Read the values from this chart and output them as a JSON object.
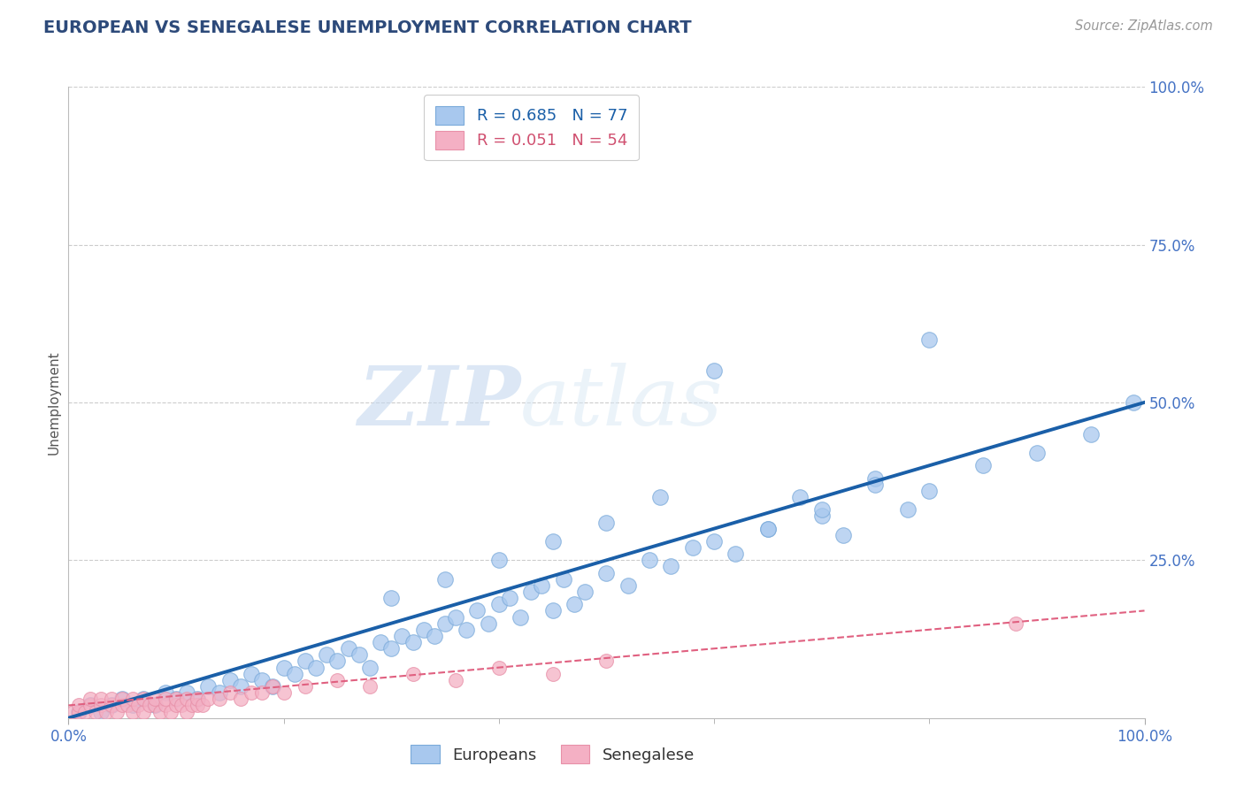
{
  "title": "EUROPEAN VS SENEGALESE UNEMPLOYMENT CORRELATION CHART",
  "source": "Source: ZipAtlas.com",
  "ylabel": "Unemployment",
  "title_color": "#2d4a7a",
  "source_color": "#999999",
  "background_color": "#ffffff",
  "xlim": [
    0,
    100
  ],
  "ylim": [
    0,
    100
  ],
  "blue_color": "#a8c8ee",
  "blue_edge": "#7aaada",
  "pink_color": "#f4b0c4",
  "pink_edge": "#e890a8",
  "trend_blue_color": "#1a5fa8",
  "trend_pink_color": "#e06080",
  "legend_line1": "R = 0.685   N = 77",
  "legend_line2": "R = 0.051   N = 54",
  "watermark_zip": "ZIP",
  "watermark_atlas": "atlas",
  "eu_x": [
    1,
    2,
    3,
    4,
    5,
    6,
    7,
    8,
    9,
    10,
    11,
    12,
    13,
    14,
    15,
    16,
    17,
    18,
    19,
    20,
    21,
    22,
    23,
    24,
    25,
    26,
    27,
    28,
    29,
    30,
    31,
    32,
    33,
    34,
    35,
    36,
    37,
    38,
    39,
    40,
    41,
    42,
    43,
    44,
    45,
    46,
    47,
    48,
    50,
    52,
    54,
    56,
    58,
    60,
    62,
    65,
    68,
    70,
    72,
    75,
    78,
    80,
    85,
    90,
    95,
    99,
    30,
    35,
    40,
    45,
    50,
    55,
    60,
    65,
    70,
    75,
    80
  ],
  "eu_y": [
    1,
    2,
    1,
    2,
    3,
    2,
    3,
    2,
    4,
    3,
    4,
    3,
    5,
    4,
    6,
    5,
    7,
    6,
    5,
    8,
    7,
    9,
    8,
    10,
    9,
    11,
    10,
    8,
    12,
    11,
    13,
    12,
    14,
    13,
    15,
    16,
    14,
    17,
    15,
    18,
    19,
    16,
    20,
    21,
    17,
    22,
    18,
    20,
    23,
    21,
    25,
    24,
    27,
    28,
    26,
    30,
    35,
    32,
    29,
    38,
    33,
    36,
    40,
    42,
    45,
    50,
    19,
    22,
    25,
    28,
    31,
    35,
    55,
    30,
    33,
    37,
    60
  ],
  "sen_x": [
    0.5,
    1,
    1,
    1.5,
    2,
    2,
    2.5,
    3,
    3,
    3.5,
    4,
    4,
    4.5,
    5,
    5,
    5.5,
    6,
    6,
    6.5,
    7,
    7,
    7.5,
    8,
    8,
    8.5,
    9,
    9,
    9.5,
    10,
    10,
    10.5,
    11,
    11,
    11.5,
    12,
    12,
    12.5,
    13,
    14,
    15,
    16,
    17,
    18,
    19,
    20,
    22,
    25,
    28,
    32,
    36,
    40,
    45,
    50,
    88
  ],
  "sen_y": [
    1,
    1,
    2,
    1,
    2,
    3,
    1,
    2,
    3,
    1,
    2,
    3,
    1,
    2,
    3,
    2,
    1,
    3,
    2,
    1,
    3,
    2,
    2,
    3,
    1,
    2,
    3,
    1,
    2,
    3,
    2,
    1,
    3,
    2,
    2,
    3,
    2,
    3,
    3,
    4,
    3,
    4,
    4,
    5,
    4,
    5,
    6,
    5,
    7,
    6,
    8,
    7,
    9,
    15
  ]
}
